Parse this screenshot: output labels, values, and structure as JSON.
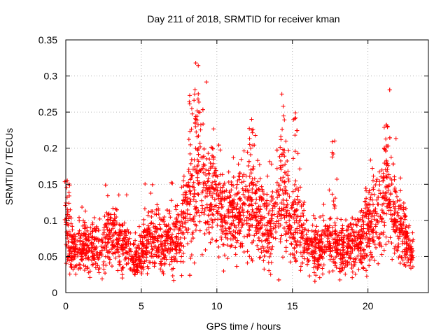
{
  "chart_data": {
    "type": "scatter",
    "title": "Day 211 of 2018, SRMTID for receiver kman",
    "xlabel": "GPS time / hours",
    "ylabel": "SRMTID / TECUs",
    "xlim": [
      0,
      24
    ],
    "ylim": [
      0,
      0.35
    ],
    "xticks": [
      0,
      5,
      10,
      15,
      20
    ],
    "xtick_labels": [
      "0",
      "5",
      "10",
      "15",
      "20"
    ],
    "yticks": [
      0,
      0.05,
      0.1,
      0.15,
      0.2,
      0.25,
      0.3,
      0.35
    ],
    "ytick_labels": [
      "0",
      "0.05",
      "0.1",
      "0.15",
      "0.2",
      "0.25",
      "0.3",
      "0.35"
    ],
    "grid": true,
    "marker": "+",
    "color": "#ff0000",
    "series": [
      {
        "name": "SRMTID",
        "x_range": [
          0,
          23
        ],
        "num_points": 3000,
        "trend": [
          [
            0.0,
            0.1
          ],
          [
            0.3,
            0.06
          ],
          [
            1.0,
            0.065
          ],
          [
            2.0,
            0.06
          ],
          [
            3.0,
            0.08
          ],
          [
            4.0,
            0.065
          ],
          [
            4.7,
            0.04
          ],
          [
            5.5,
            0.08
          ],
          [
            6.5,
            0.07
          ],
          [
            7.5,
            0.08
          ],
          [
            8.3,
            0.13
          ],
          [
            8.7,
            0.15
          ],
          [
            9.5,
            0.14
          ],
          [
            10.0,
            0.13
          ],
          [
            10.5,
            0.1
          ],
          [
            11.5,
            0.11
          ],
          [
            12.5,
            0.12
          ],
          [
            13.5,
            0.09
          ],
          [
            14.3,
            0.13
          ],
          [
            15.0,
            0.1
          ],
          [
            15.5,
            0.09
          ],
          [
            16.0,
            0.06
          ],
          [
            16.5,
            0.06
          ],
          [
            17.5,
            0.07
          ],
          [
            18.5,
            0.06
          ],
          [
            19.5,
            0.07
          ],
          [
            20.5,
            0.11
          ],
          [
            21.2,
            0.14
          ],
          [
            21.7,
            0.11
          ],
          [
            22.3,
            0.08
          ],
          [
            23.0,
            0.05
          ]
        ],
        "spikes": [
          [
            8.2,
            0.273
          ],
          [
            8.6,
            0.318
          ],
          [
            8.8,
            0.25
          ],
          [
            12.3,
            0.24
          ],
          [
            14.3,
            0.275
          ],
          [
            15.2,
            0.249
          ],
          [
            21.2,
            0.232
          ],
          [
            0.1,
            0.155
          ],
          [
            9.7,
            0.2
          ],
          [
            17.8,
            0.21
          ]
        ]
      }
    ]
  }
}
